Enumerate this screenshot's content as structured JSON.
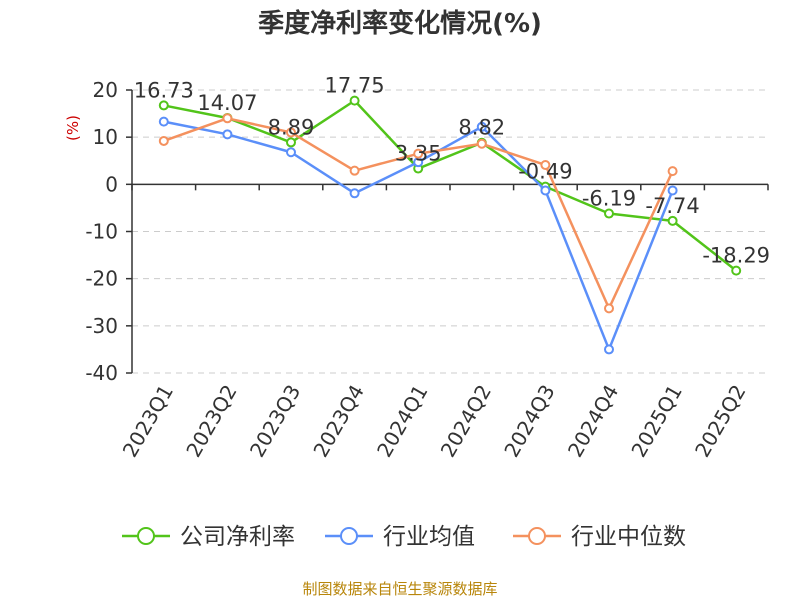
{
  "chart_data": {
    "type": "line",
    "title": "季度净利率变化情况(%)",
    "ylabel": "(%)",
    "xlabel": "",
    "categories": [
      "2023Q1",
      "2023Q2",
      "2023Q3",
      "2023Q4",
      "2024Q1",
      "2024Q2",
      "2024Q3",
      "2024Q4",
      "2025Q1",
      "2025Q2"
    ],
    "ylim": [
      -40,
      20
    ],
    "yticks": [
      20,
      10,
      0,
      -10,
      -20,
      -30,
      -40
    ],
    "ytick_labels": [
      "20",
      "10",
      "0",
      "-10",
      "-20",
      "-30",
      "-40"
    ],
    "grid": true,
    "legend_position": "bottom",
    "series": [
      {
        "name": "公司净利率",
        "color": "#52c41a",
        "values": [
          16.73,
          14.07,
          8.89,
          17.75,
          3.35,
          8.82,
          -0.49,
          -6.19,
          -7.74,
          -18.29
        ],
        "labels": [
          "16.73",
          "14.07",
          "8.89",
          "17.75",
          "3.35",
          "8.82",
          "-0.49",
          "-6.19",
          "-7.74",
          "-18.29"
        ]
      },
      {
        "name": "行业均值",
        "color": "#5b8ff9",
        "values": [
          13.3,
          10.6,
          6.8,
          -1.9,
          4.7,
          12.2,
          -1.3,
          -35.0,
          -1.3,
          null
        ]
      },
      {
        "name": "行业中位数",
        "color": "#f4915e",
        "values": [
          9.2,
          14.0,
          11.0,
          2.9,
          6.5,
          8.6,
          4.1,
          -26.3,
          2.8,
          null
        ]
      }
    ],
    "source": "制图数据来自恒生聚源数据库"
  }
}
